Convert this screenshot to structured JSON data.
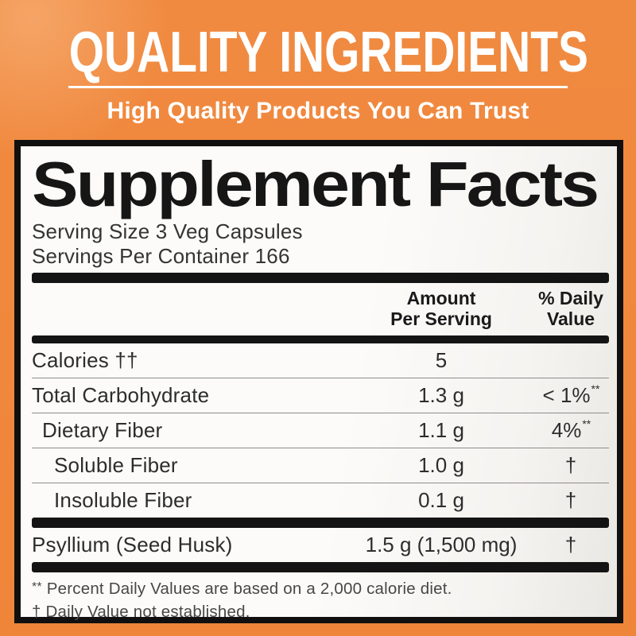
{
  "banner": {
    "title": "QUALITY INGREDIENTS",
    "subtitle": "High Quality Products You Can Trust"
  },
  "label": {
    "title": "Supplement Facts",
    "serving_size": "Serving Size 3 Veg Capsules",
    "servings_per_container": "Servings Per Container 166",
    "columns": {
      "amount_line1": "Amount",
      "amount_line2": "Per Serving",
      "dv_line1": "% Daily",
      "dv_line2": "Value"
    },
    "rows": [
      {
        "name": "Calories ††",
        "amount": "5",
        "dv": ""
      },
      {
        "name": "Total Carbohydrate",
        "amount": "1.3 g",
        "dv": "< 1%",
        "dv_sup": "**"
      },
      {
        "name": "Dietary Fiber",
        "amount": "1.1 g",
        "dv": "4%",
        "dv_sup": "**"
      },
      {
        "name": "Soluble Fiber",
        "amount": "1.0 g",
        "dv": "†"
      },
      {
        "name": "Insoluble Fiber",
        "amount": "0.1 g",
        "dv": "†"
      },
      {
        "name": "Psyllium (Seed Husk)",
        "amount": "1.5 g (1,500 mg)",
        "dv": "†"
      }
    ],
    "footnotes": [
      {
        "marker": "**",
        "text": "Percent Daily Values are based on a 2,000 calorie diet."
      },
      {
        "marker": "†",
        "text": "Daily Value not established."
      }
    ]
  },
  "colors": {
    "background_orange": "#F0873E",
    "banner_text": "#FFFFFF",
    "panel_border": "#101010",
    "panel_background": "#FCFBF9",
    "label_text": "#1C1C1C"
  }
}
